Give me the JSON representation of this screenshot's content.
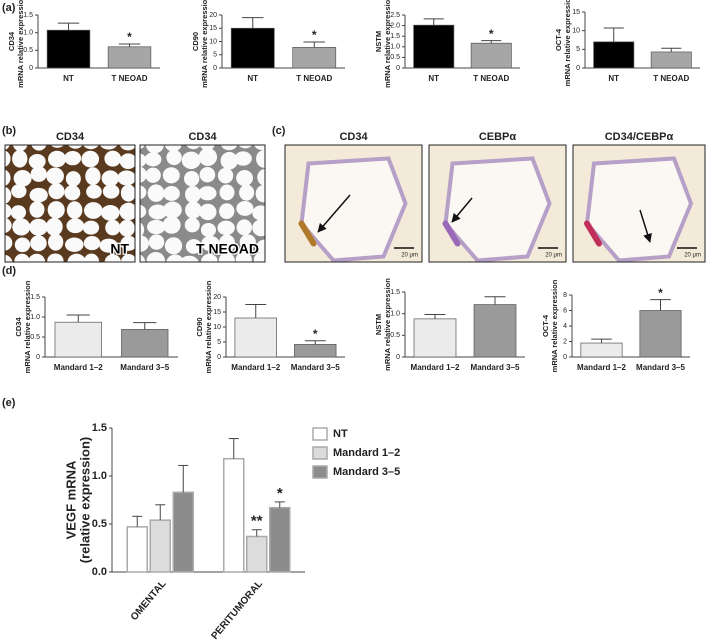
{
  "panels": [
    "(a)",
    "(b)",
    "(c)",
    "(d)",
    "(e)"
  ],
  "micrographs": [
    {
      "title": "CD34",
      "label": "NT"
    },
    {
      "title": "CD34",
      "label": "T NEOAD"
    },
    {
      "title": "CD34",
      "scale_bar": "20 μm"
    },
    {
      "title": "CEBPα",
      "scale_bar": "20 μm"
    },
    {
      "title": "CD34/CEBPα",
      "scale_bar": "20 μm"
    }
  ],
  "chart_data": [
    {
      "type": "bar",
      "ylabel": [
        "CD34",
        "mRNA relative expression"
      ],
      "categories": [
        "NT",
        "T NEOAD"
      ],
      "values": [
        1.07,
        0.6
      ],
      "errors": [
        0.2,
        0.08
      ],
      "colors": [
        "#000000",
        "#a6a6a6"
      ],
      "significance": [
        null,
        "*"
      ],
      "ylim": [
        0,
        1.5
      ],
      "yticks": [
        0,
        0.5,
        {
          "value": 1,
          "label": "1.0"
        },
        1.5
      ]
    },
    {
      "type": "bar",
      "ylabel": [
        "CD90",
        "mRNA relative expression"
      ],
      "categories": [
        "NT",
        "T NEOAD"
      ],
      "values": [
        15,
        7.8
      ],
      "errors": [
        4,
        2
      ],
      "colors": [
        "#000000",
        "#a6a6a6"
      ],
      "significance": [
        null,
        "*"
      ],
      "ylim": [
        0,
        20
      ],
      "yticks": [
        0,
        5,
        10,
        15,
        20
      ]
    },
    {
      "type": "bar",
      "ylabel": [
        "NSTM",
        "mRNA relative expression"
      ],
      "categories": [
        "NT",
        "T NEOAD"
      ],
      "values": [
        2.02,
        1.17
      ],
      "errors": [
        0.3,
        0.12
      ],
      "colors": [
        "#000000",
        "#a6a6a6"
      ],
      "significance": [
        null,
        "*"
      ],
      "ylim": [
        0,
        2.5
      ],
      "yticks": [
        0,
        0.5,
        {
          "value": 1,
          "label": "1.0"
        },
        1.5,
        {
          "value": 2,
          "label": "2.0"
        },
        2.5
      ]
    },
    {
      "type": "bar",
      "ylabel": [
        "OCT-4",
        "mRNA relative expression"
      ],
      "categories": [
        "NT",
        "T NEOAD"
      ],
      "values": [
        7,
        4.3
      ],
      "errors": [
        3.7,
        1
      ],
      "colors": [
        "#000000",
        "#a6a6a6"
      ],
      "significance": [
        null,
        null
      ],
      "ylim": [
        0,
        15
      ],
      "yticks": [
        0,
        5,
        10,
        15
      ]
    },
    {
      "type": "bar",
      "ylabel": [
        "CD34",
        "mRNA relative expression"
      ],
      "categories": [
        "Mandard 1–2",
        "Mandard 3–5"
      ],
      "values": [
        0.87,
        0.69
      ],
      "errors": [
        0.18,
        0.17
      ],
      "colors": [
        "#ebebeb",
        "#9a9a9a"
      ],
      "significance": [
        null,
        null
      ],
      "ylim": [
        0,
        1.5
      ],
      "yticks": [
        0,
        0.5,
        {
          "value": 1,
          "label": "1.0"
        },
        1.5
      ]
    },
    {
      "type": "bar",
      "ylabel": [
        "CD90",
        "mRNA relative expression"
      ],
      "categories": [
        "Mandard 1–2",
        "Mandard 3–5"
      ],
      "values": [
        13,
        4.2
      ],
      "errors": [
        4.5,
        1.2
      ],
      "colors": [
        "#ebebeb",
        "#9a9a9a"
      ],
      "significance": [
        null,
        "*"
      ],
      "ylim": [
        0,
        20
      ],
      "yticks": [
        0,
        5,
        10,
        15,
        20
      ]
    },
    {
      "type": "bar",
      "ylabel": [
        "NSTM",
        "mRNA relative expression"
      ],
      "categories": [
        "Mandard 1–2",
        "Mandard 3–5"
      ],
      "values": [
        0.88,
        1.21
      ],
      "errors": [
        0.1,
        0.18
      ],
      "colors": [
        "#ebebeb",
        "#9a9a9a"
      ],
      "significance": [
        null,
        null
      ],
      "ylim": [
        0,
        1.5
      ],
      "yticks": [
        0,
        0.5,
        {
          "value": 1,
          "label": "1.0"
        },
        1.5
      ]
    },
    {
      "type": "bar",
      "ylabel": [
        "OCT-4",
        "mRNA relative expression"
      ],
      "categories": [
        "Mandard 1–2",
        "Mandard 3–5"
      ],
      "values": [
        1.8,
        6
      ],
      "errors": [
        0.5,
        1.4
      ],
      "colors": [
        "#ebebeb",
        "#9a9a9a"
      ],
      "significance": [
        null,
        "*"
      ],
      "ylim": [
        0,
        8
      ],
      "yticks": [
        0,
        2,
        4,
        6,
        8
      ]
    },
    {
      "type": "grouped_bar",
      "ylabel": [
        "VEGF mRNA",
        "(relative expression)"
      ],
      "categories": [
        "OMENTAL",
        "PERITUMORAL"
      ],
      "series": [
        {
          "name": "NT",
          "color": "#ffffff",
          "values": [
            0.47,
            1.18
          ],
          "errors": [
            0.11,
            0.21
          ],
          "significance": [
            null,
            null
          ]
        },
        {
          "name": "Mandard 1–2",
          "color": "#dcdcdc",
          "values": [
            0.54,
            0.37
          ],
          "errors": [
            0.16,
            0.07
          ],
          "significance": [
            null,
            "**"
          ]
        },
        {
          "name": "Mandard 3–5",
          "color": "#8c8c8c",
          "values": [
            0.83,
            0.67
          ],
          "errors": [
            0.28,
            0.06
          ],
          "significance": [
            null,
            "*"
          ]
        }
      ],
      "ylim": [
        0,
        1.5
      ],
      "yticks": [
        {
          "value": 0,
          "label": "0.0"
        },
        0.5,
        {
          "value": 1,
          "label": "1.0"
        },
        1.5
      ]
    }
  ]
}
